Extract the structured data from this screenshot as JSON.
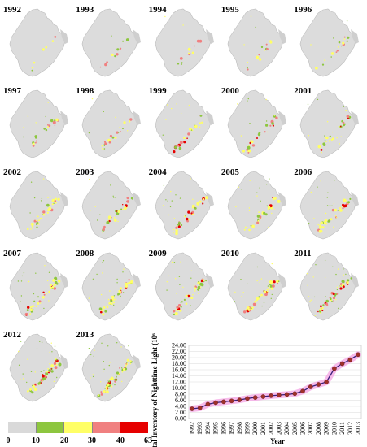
{
  "years": [
    "1992",
    "1993",
    "1994",
    "1995",
    "1996",
    "1997",
    "1998",
    "1999",
    "2000",
    "2001",
    "2002",
    "2003",
    "2004",
    "2005",
    "2006",
    "2007",
    "2008",
    "2009",
    "2010",
    "2011",
    "2012",
    "2013"
  ],
  "legend": {
    "ticks": [
      "0",
      "10",
      "20",
      "30",
      "40",
      "63"
    ],
    "colors": [
      "#d9d9d9",
      "#8dc63f",
      "#ffff66",
      "#f08080",
      "#e60000"
    ]
  },
  "chart_data": {
    "type": "line",
    "x": [
      "1992",
      "1993",
      "1994",
      "1995",
      "1996",
      "1997",
      "1998",
      "1999",
      "2000",
      "2001",
      "2002",
      "2003",
      "2004",
      "2005",
      "2006",
      "2007",
      "2008",
      "2009",
      "2010",
      "2011",
      "2012",
      "2013"
    ],
    "y": [
      3.2,
      3.5,
      4.7,
      5.2,
      5.5,
      5.8,
      6.1,
      6.6,
      6.9,
      7.2,
      7.5,
      7.7,
      7.9,
      8.2,
      9.0,
      10.4,
      11.2,
      12.0,
      16.4,
      18.0,
      19.3,
      21.0
    ],
    "xlabel": "Year",
    "ylabel": "Total Inventory of Nighttime Light (10⁶)",
    "ylim": [
      0,
      24
    ],
    "yticks": [
      "0.00",
      "2.00",
      "4.00",
      "6.00",
      "8.00",
      "10.00",
      "12.00",
      "14.00",
      "16.00",
      "18.00",
      "20.00",
      "22.00",
      "24.00"
    ],
    "line_color": "#3a1f7a",
    "marker_color": "#a0302a",
    "band_color": "#f5a9e6",
    "grid": true
  }
}
